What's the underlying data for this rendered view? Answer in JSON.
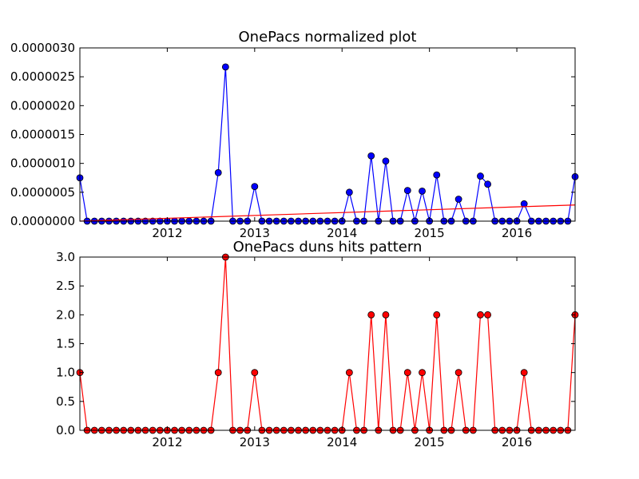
{
  "chart_data": [
    {
      "type": "line",
      "title": "OnePacs normalized plot",
      "xlabel": "",
      "ylabel": "",
      "xlim": [
        "2011-01",
        "2016-09"
      ],
      "ylim": [
        0,
        3e-06
      ],
      "yticks": [
        0,
        5e-07,
        1e-06,
        1.5e-06,
        2e-06,
        2.5e-06,
        3e-06
      ],
      "ytick_labels": [
        "0.0000000",
        "0.0000005",
        "0.0000010",
        "0.0000015",
        "0.0000020",
        "0.0000025",
        "0.0000030"
      ],
      "xticks": [
        "2012-01",
        "2013-01",
        "2014-01",
        "2015-01",
        "2016-01"
      ],
      "xtick_labels": [
        "2012",
        "2013",
        "2014",
        "2015",
        "2016"
      ],
      "colors": {
        "series": "#0000ff",
        "trend": "#ff0000"
      },
      "series": [
        {
          "marker": "circle",
          "x": [
            "2011-01",
            "2011-02",
            "2011-03",
            "2011-04",
            "2011-05",
            "2011-06",
            "2011-07",
            "2011-08",
            "2011-09",
            "2011-10",
            "2011-11",
            "2011-12",
            "2012-01",
            "2012-02",
            "2012-03",
            "2012-04",
            "2012-05",
            "2012-06",
            "2012-07",
            "2012-08",
            "2012-09",
            "2012-10",
            "2012-11",
            "2012-12",
            "2013-01",
            "2013-02",
            "2013-03",
            "2013-04",
            "2013-05",
            "2013-06",
            "2013-07",
            "2013-08",
            "2013-09",
            "2013-10",
            "2013-11",
            "2013-12",
            "2014-01",
            "2014-02",
            "2014-03",
            "2014-04",
            "2014-05",
            "2014-06",
            "2014-07",
            "2014-08",
            "2014-09",
            "2014-10",
            "2014-11",
            "2014-12",
            "2015-01",
            "2015-02",
            "2015-03",
            "2015-04",
            "2015-05",
            "2015-06",
            "2015-07",
            "2015-08",
            "2015-09",
            "2015-10",
            "2015-11",
            "2015-12",
            "2016-01",
            "2016-02",
            "2016-03",
            "2016-04",
            "2016-05",
            "2016-06",
            "2016-07",
            "2016-08",
            "2016-09"
          ],
          "values": [
            7.5e-07,
            0,
            0,
            0,
            0,
            0,
            0,
            0,
            0,
            0,
            0,
            0,
            0,
            0,
            0,
            0,
            0,
            0,
            0,
            8.4e-07,
            2.67e-06,
            0,
            0,
            0,
            6e-07,
            0,
            0,
            0,
            0,
            0,
            0,
            0,
            0,
            0,
            0,
            0,
            0,
            5e-07,
            0,
            0,
            1.13e-06,
            0,
            1.04e-06,
            0,
            0,
            5.3e-07,
            0,
            5.2e-07,
            0,
            8e-07,
            0,
            0,
            3.8e-07,
            0,
            0,
            7.8e-07,
            6.4e-07,
            0,
            0,
            0,
            0,
            3e-07,
            0,
            0,
            0,
            0,
            0,
            0,
            7.7e-07
          ]
        },
        {
          "type": "line",
          "x": [
            "2011-01",
            "2016-09"
          ],
          "values": [
            0,
            2.8e-07
          ]
        }
      ]
    },
    {
      "type": "line",
      "title": "OnePacs duns hits pattern",
      "xlabel": "",
      "ylabel": "",
      "xlim": [
        "2011-01",
        "2016-09"
      ],
      "ylim": [
        0,
        3
      ],
      "yticks": [
        0,
        0.5,
        1,
        1.5,
        2,
        2.5,
        3
      ],
      "ytick_labels": [
        "0.0",
        "0.5",
        "1.0",
        "1.5",
        "2.0",
        "2.5",
        "3.0"
      ],
      "xticks": [
        "2012-01",
        "2013-01",
        "2014-01",
        "2015-01",
        "2016-01"
      ],
      "xtick_labels": [
        "2012",
        "2013",
        "2014",
        "2015",
        "2016"
      ],
      "colors": {
        "series": "#ff0000",
        "marker_edge": "#000000"
      },
      "series": [
        {
          "marker": "circle",
          "x": [
            "2011-01",
            "2011-02",
            "2011-03",
            "2011-04",
            "2011-05",
            "2011-06",
            "2011-07",
            "2011-08",
            "2011-09",
            "2011-10",
            "2011-11",
            "2011-12",
            "2012-01",
            "2012-02",
            "2012-03",
            "2012-04",
            "2012-05",
            "2012-06",
            "2012-07",
            "2012-08",
            "2012-09",
            "2012-10",
            "2012-11",
            "2012-12",
            "2013-01",
            "2013-02",
            "2013-03",
            "2013-04",
            "2013-05",
            "2013-06",
            "2013-07",
            "2013-08",
            "2013-09",
            "2013-10",
            "2013-11",
            "2013-12",
            "2014-01",
            "2014-02",
            "2014-03",
            "2014-04",
            "2014-05",
            "2014-06",
            "2014-07",
            "2014-08",
            "2014-09",
            "2014-10",
            "2014-11",
            "2014-12",
            "2015-01",
            "2015-02",
            "2015-03",
            "2015-04",
            "2015-05",
            "2015-06",
            "2015-07",
            "2015-08",
            "2015-09",
            "2015-10",
            "2015-11",
            "2015-12",
            "2016-01",
            "2016-02",
            "2016-03",
            "2016-04",
            "2016-05",
            "2016-06",
            "2016-07",
            "2016-08",
            "2016-09"
          ],
          "values": [
            1,
            0,
            0,
            0,
            0,
            0,
            0,
            0,
            0,
            0,
            0,
            0,
            0,
            0,
            0,
            0,
            0,
            0,
            0,
            1,
            3,
            0,
            0,
            0,
            1,
            0,
            0,
            0,
            0,
            0,
            0,
            0,
            0,
            0,
            0,
            0,
            0,
            1,
            0,
            0,
            2,
            0,
            2,
            0,
            0,
            1,
            0,
            1,
            0,
            2,
            0,
            0,
            1,
            0,
            0,
            2,
            2,
            0,
            0,
            0,
            0,
            1,
            0,
            0,
            0,
            0,
            0,
            0,
            2
          ]
        }
      ]
    }
  ]
}
